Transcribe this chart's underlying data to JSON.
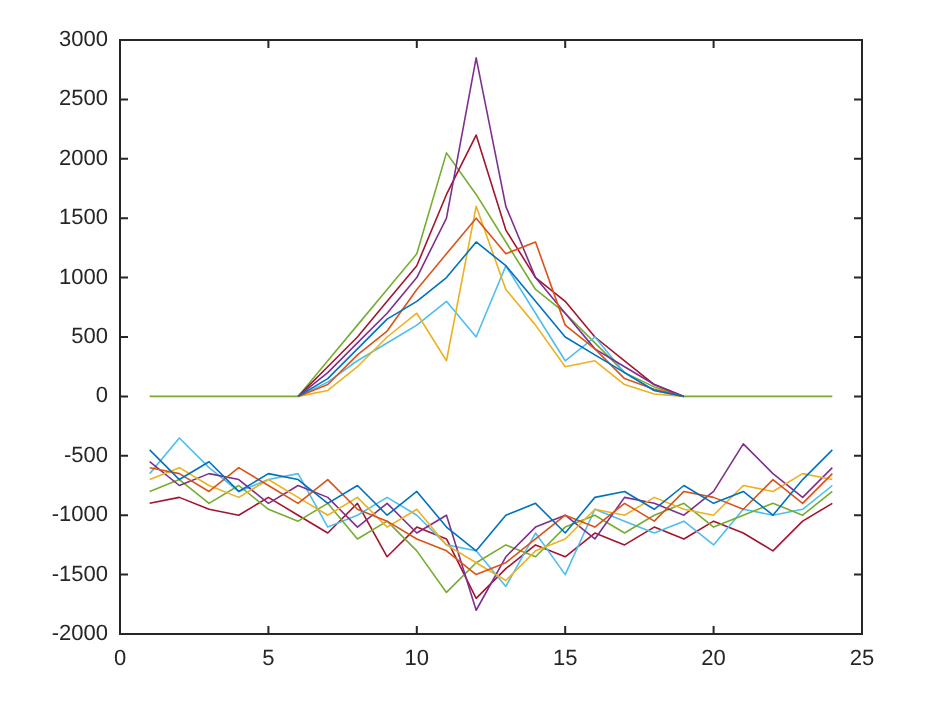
{
  "chart_data": {
    "type": "line",
    "x": [
      1,
      2,
      3,
      4,
      5,
      6,
      7,
      8,
      9,
      10,
      11,
      12,
      13,
      14,
      15,
      16,
      17,
      18,
      19,
      20,
      21,
      22,
      23,
      24
    ],
    "xlim": [
      0,
      25
    ],
    "xticks": [
      0,
      5,
      10,
      15,
      20,
      25
    ],
    "ylim": [
      -2000,
      3000
    ],
    "yticks": [
      -2000,
      -1500,
      -1000,
      -500,
      0,
      500,
      1000,
      1500,
      2000,
      2500,
      3000
    ],
    "grid": false,
    "legend": false,
    "marker": "none",
    "line_style": "solid",
    "series": [
      {
        "color": "#0072bd",
        "values": [
          -450,
          -700,
          -550,
          -800,
          -650,
          -700,
          -900,
          -750,
          -1000,
          -800,
          -1100,
          -1300,
          -1000,
          -900,
          -1150,
          -850,
          -800,
          -950,
          -750,
          -900,
          -800,
          -1000,
          -700,
          -450
        ]
      },
      {
        "color": "#d95319",
        "values": [
          -600,
          -650,
          -800,
          -600,
          -750,
          -900,
          -700,
          -950,
          -1050,
          -1200,
          -1300,
          -1500,
          -1400,
          -1200,
          -1000,
          -1100,
          -900,
          -1050,
          -800,
          -850,
          -950,
          -700,
          -900,
          -650
        ]
      },
      {
        "color": "#edb120",
        "values": [
          -700,
          -600,
          -750,
          -850,
          -700,
          -850,
          -1000,
          -850,
          -1100,
          -950,
          -1250,
          -1400,
          -1550,
          -1300,
          -1200,
          -950,
          -1000,
          -850,
          -950,
          -1000,
          -750,
          -800,
          -650,
          -700
        ]
      },
      {
        "color": "#7e2f8e",
        "values": [
          -550,
          -750,
          -650,
          -700,
          -900,
          -750,
          -850,
          -1100,
          -900,
          -1150,
          -1000,
          -1800,
          -1350,
          -1100,
          -1000,
          -1200,
          -850,
          -900,
          -1000,
          -800,
          -400,
          -650,
          -850,
          -600
        ]
      },
      {
        "color": "#77ac30",
        "values": [
          -800,
          -700,
          -900,
          -750,
          -950,
          -1050,
          -900,
          -1200,
          -1050,
          -1300,
          -1650,
          -1400,
          -1250,
          -1350,
          -1100,
          -1000,
          -1150,
          -1000,
          -900,
          -1100,
          -1000,
          -900,
          -1000,
          -800
        ]
      },
      {
        "color": "#4dbeee",
        "values": [
          -650,
          -350,
          -600,
          -800,
          -700,
          -650,
          -1100,
          -1000,
          -850,
          -1000,
          -1250,
          -1300,
          -1600,
          -1150,
          -1500,
          -950,
          -1050,
          -1150,
          -1050,
          -1250,
          -950,
          -1000,
          -950,
          -750
        ]
      },
      {
        "color": "#a2142f",
        "values": [
          -900,
          -850,
          -950,
          -1000,
          -850,
          -1000,
          -1150,
          -900,
          -1350,
          -1100,
          -1200,
          -1700,
          -1450,
          -1250,
          -1350,
          -1150,
          -1250,
          -1100,
          -1200,
          -1050,
          -1150,
          -1300,
          -1050,
          -900
        ]
      },
      {
        "color": "#0072bd",
        "values": [
          null,
          null,
          null,
          null,
          null,
          0,
          150,
          400,
          650,
          800,
          1000,
          1300,
          1100,
          800,
          500,
          350,
          200,
          50,
          0,
          null,
          null,
          null,
          null,
          null
        ]
      },
      {
        "color": "#d95319",
        "values": [
          null,
          null,
          null,
          null,
          null,
          0,
          100,
          350,
          550,
          900,
          1200,
          1500,
          1200,
          1300,
          600,
          400,
          150,
          60,
          0,
          null,
          null,
          null,
          null,
          null
        ]
      },
      {
        "color": "#edb120",
        "values": [
          null,
          null,
          null,
          null,
          null,
          0,
          50,
          250,
          500,
          700,
          300,
          1600,
          900,
          600,
          250,
          300,
          100,
          20,
          0,
          null,
          null,
          null,
          null,
          null
        ]
      },
      {
        "color": "#7e2f8e",
        "values": [
          null,
          null,
          null,
          null,
          null,
          0,
          200,
          450,
          700,
          1000,
          1500,
          2850,
          1600,
          1000,
          700,
          400,
          250,
          100,
          0,
          null,
          null,
          null,
          null,
          null
        ]
      },
      {
        "color": "#4dbeee",
        "values": [
          null,
          null,
          null,
          null,
          null,
          0,
          120,
          300,
          450,
          600,
          800,
          500,
          1100,
          700,
          300,
          500,
          200,
          50,
          0,
          null,
          null,
          null,
          null,
          null
        ]
      },
      {
        "color": "#a2142f",
        "values": [
          null,
          null,
          null,
          null,
          null,
          0,
          250,
          500,
          800,
          1100,
          1700,
          2200,
          1400,
          1000,
          800,
          500,
          300,
          100,
          0,
          null,
          null,
          null,
          null,
          null
        ]
      },
      {
        "color": "#77ac30",
        "values": [
          0,
          0,
          0,
          0,
          0,
          0,
          300,
          600,
          900,
          1200,
          2050,
          1700,
          1300,
          900,
          700,
          450,
          200,
          80,
          0,
          0,
          0,
          0,
          0,
          0
        ]
      }
    ]
  }
}
